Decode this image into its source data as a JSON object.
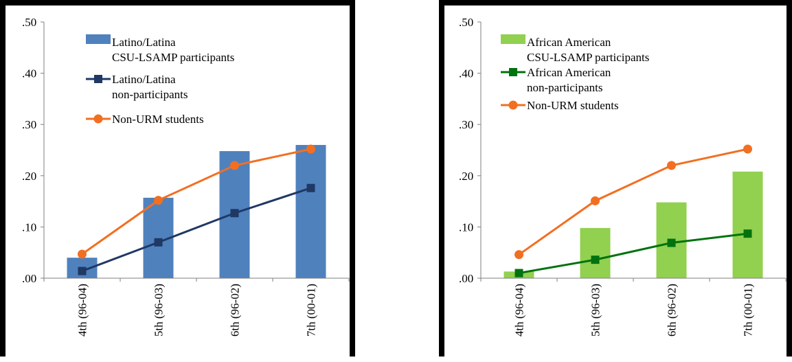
{
  "chart_data": [
    {
      "type": "bar",
      "categories": [
        "4th (96-04)",
        "5th (96-03)",
        "6th (96-02)",
        "7th (00-01)"
      ],
      "yticks": [
        ".00",
        ".10",
        ".20",
        ".30",
        ".40",
        ".50"
      ],
      "ylim": [
        0,
        0.5
      ],
      "grid": false,
      "legend_position": "top-left",
      "bar_series": {
        "name": "Latino/Latina CSU-LSAMP participants",
        "legend_lines": [
          "Latino/Latina",
          "CSU-LSAMP participants"
        ],
        "color": "#4f81bd",
        "values": [
          0.04,
          0.157,
          0.248,
          0.26
        ]
      },
      "line_series": [
        {
          "name": "Latino/Latina non-participants",
          "legend_lines": [
            "Latino/Latina",
            "non-participants"
          ],
          "color": "#1f3864",
          "marker": "square",
          "values": [
            0.014,
            0.07,
            0.127,
            0.176
          ]
        },
        {
          "name": "Non-URM students",
          "legend_lines": [
            "Non-URM students"
          ],
          "color": "#f26f21",
          "marker": "circle",
          "values": [
            0.047,
            0.152,
            0.22,
            0.252
          ]
        }
      ]
    },
    {
      "type": "bar",
      "categories": [
        "4th (96-04)",
        "5th (96-03)",
        "6th (96-02)",
        "7th (00-01)"
      ],
      "yticks": [
        ".00",
        ".10",
        ".20",
        ".30",
        ".40",
        ".50"
      ],
      "ylim": [
        0,
        0.5
      ],
      "grid": false,
      "legend_position": "top-left",
      "bar_series": {
        "name": "African American CSU-LSAMP participants",
        "legend_lines": [
          "African American",
          "CSU-LSAMP participants"
        ],
        "color": "#92d050",
        "values": [
          0.013,
          0.098,
          0.148,
          0.208
        ]
      },
      "line_series": [
        {
          "name": "African American non-participants",
          "legend_lines": [
            "African American",
            "non-participants"
          ],
          "color": "#00720e",
          "marker": "square",
          "values": [
            0.01,
            0.036,
            0.069,
            0.087
          ]
        },
        {
          "name": "Non-URM students",
          "legend_lines": [
            "Non-URM students"
          ],
          "color": "#f26f21",
          "marker": "circle",
          "values": [
            0.046,
            0.151,
            0.22,
            0.252
          ]
        }
      ]
    }
  ]
}
